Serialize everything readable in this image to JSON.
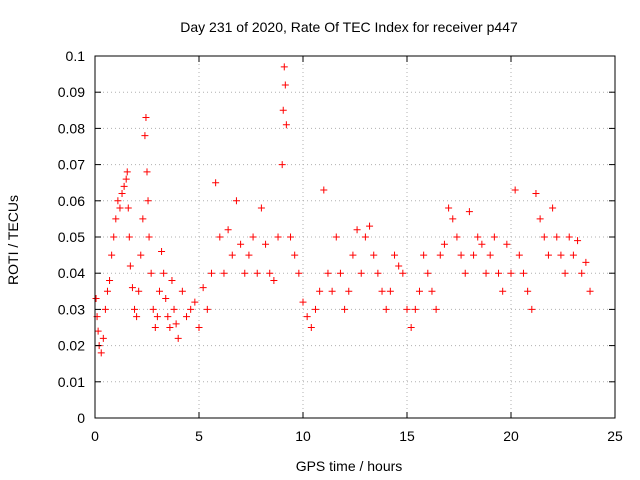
{
  "chart_data": {
    "type": "scatter",
    "title": "Day 231 of 2020, Rate Of TEC Index for receiver p447",
    "xlabel": "GPS time / hours",
    "ylabel": "ROTI / TECUs",
    "xlim": [
      0,
      25
    ],
    "ylim": [
      0,
      0.1
    ],
    "xticks": [
      0,
      5,
      10,
      15,
      20,
      25
    ],
    "xtick_labels": [
      "0",
      "5",
      "10",
      "15",
      "20",
      "25"
    ],
    "yticks": [
      0,
      0.01,
      0.02,
      0.03,
      0.04,
      0.05,
      0.06,
      0.07,
      0.08,
      0.09,
      0.1
    ],
    "ytick_labels": [
      "0",
      "0.01",
      "0.02",
      "0.03",
      "0.04",
      "0.05",
      "0.06",
      "0.07",
      "0.08",
      "0.09",
      "0.1"
    ],
    "grid": true,
    "marker": "plus",
    "color": "#ff0000",
    "series": [
      {
        "x": [
          0.05,
          0.1,
          0.15,
          0.2,
          0.3,
          0.4,
          0.5,
          0.6,
          0.7,
          0.8,
          0.9,
          1.0,
          1.1,
          1.2,
          1.3,
          1.4,
          1.5,
          1.55,
          1.6,
          1.65,
          1.7,
          1.8,
          1.9,
          2.0,
          2.1,
          2.2,
          2.3,
          2.4,
          2.45,
          2.5,
          2.55,
          2.6,
          2.7,
          2.8,
          2.9,
          3.0,
          3.1,
          3.2,
          3.3,
          3.4,
          3.5,
          3.6,
          3.7,
          3.8,
          3.9,
          4.0,
          4.2,
          4.4,
          4.6,
          4.8,
          5.0,
          5.2,
          5.4,
          5.6,
          5.8,
          6.0,
          6.2,
          6.4,
          6.6,
          6.8,
          7.0,
          7.2,
          7.4,
          7.6,
          7.8,
          8.0,
          8.2,
          8.4,
          8.6,
          8.8,
          9.0,
          9.05,
          9.1,
          9.15,
          9.2,
          9.4,
          9.6,
          9.8,
          10.0,
          10.2,
          10.4,
          10.6,
          10.8,
          11.0,
          11.2,
          11.4,
          11.6,
          11.8,
          12.0,
          12.2,
          12.4,
          12.6,
          12.8,
          13.0,
          13.2,
          13.4,
          13.6,
          13.8,
          14.0,
          14.2,
          14.4,
          14.6,
          14.8,
          15.0,
          15.2,
          15.4,
          15.6,
          15.8,
          16.0,
          16.2,
          16.4,
          16.6,
          16.8,
          17.0,
          17.2,
          17.4,
          17.6,
          17.8,
          18.0,
          18.2,
          18.4,
          18.6,
          18.8,
          19.0,
          19.2,
          19.4,
          19.6,
          19.8,
          20.0,
          20.2,
          20.4,
          20.6,
          20.8,
          21.0,
          21.2,
          21.4,
          21.6,
          21.8,
          22.0,
          22.2,
          22.4,
          22.6,
          22.8,
          23.0,
          23.2,
          23.4,
          23.6,
          23.8
        ],
        "y": [
          0.033,
          0.028,
          0.024,
          0.02,
          0.018,
          0.022,
          0.03,
          0.035,
          0.038,
          0.045,
          0.05,
          0.055,
          0.06,
          0.058,
          0.062,
          0.064,
          0.066,
          0.068,
          0.058,
          0.05,
          0.042,
          0.036,
          0.03,
          0.028,
          0.035,
          0.045,
          0.055,
          0.078,
          0.083,
          0.068,
          0.06,
          0.05,
          0.04,
          0.03,
          0.025,
          0.028,
          0.035,
          0.046,
          0.04,
          0.033,
          0.028,
          0.025,
          0.038,
          0.03,
          0.026,
          0.022,
          0.035,
          0.028,
          0.03,
          0.032,
          0.025,
          0.036,
          0.03,
          0.04,
          0.065,
          0.05,
          0.04,
          0.052,
          0.045,
          0.06,
          0.048,
          0.04,
          0.045,
          0.05,
          0.04,
          0.058,
          0.048,
          0.04,
          0.038,
          0.05,
          0.07,
          0.085,
          0.097,
          0.092,
          0.081,
          0.05,
          0.045,
          0.04,
          0.032,
          0.028,
          0.025,
          0.03,
          0.035,
          0.063,
          0.04,
          0.035,
          0.05,
          0.04,
          0.03,
          0.035,
          0.045,
          0.052,
          0.04,
          0.05,
          0.053,
          0.045,
          0.04,
          0.035,
          0.03,
          0.035,
          0.045,
          0.042,
          0.04,
          0.03,
          0.025,
          0.03,
          0.035,
          0.045,
          0.04,
          0.035,
          0.03,
          0.045,
          0.048,
          0.058,
          0.055,
          0.05,
          0.045,
          0.04,
          0.057,
          0.045,
          0.05,
          0.048,
          0.04,
          0.045,
          0.05,
          0.04,
          0.035,
          0.048,
          0.04,
          0.063,
          0.045,
          0.04,
          0.035,
          0.03,
          0.062,
          0.055,
          0.05,
          0.045,
          0.058,
          0.05,
          0.045,
          0.04,
          0.05,
          0.045,
          0.049,
          0.04,
          0.043,
          0.035
        ]
      }
    ]
  }
}
